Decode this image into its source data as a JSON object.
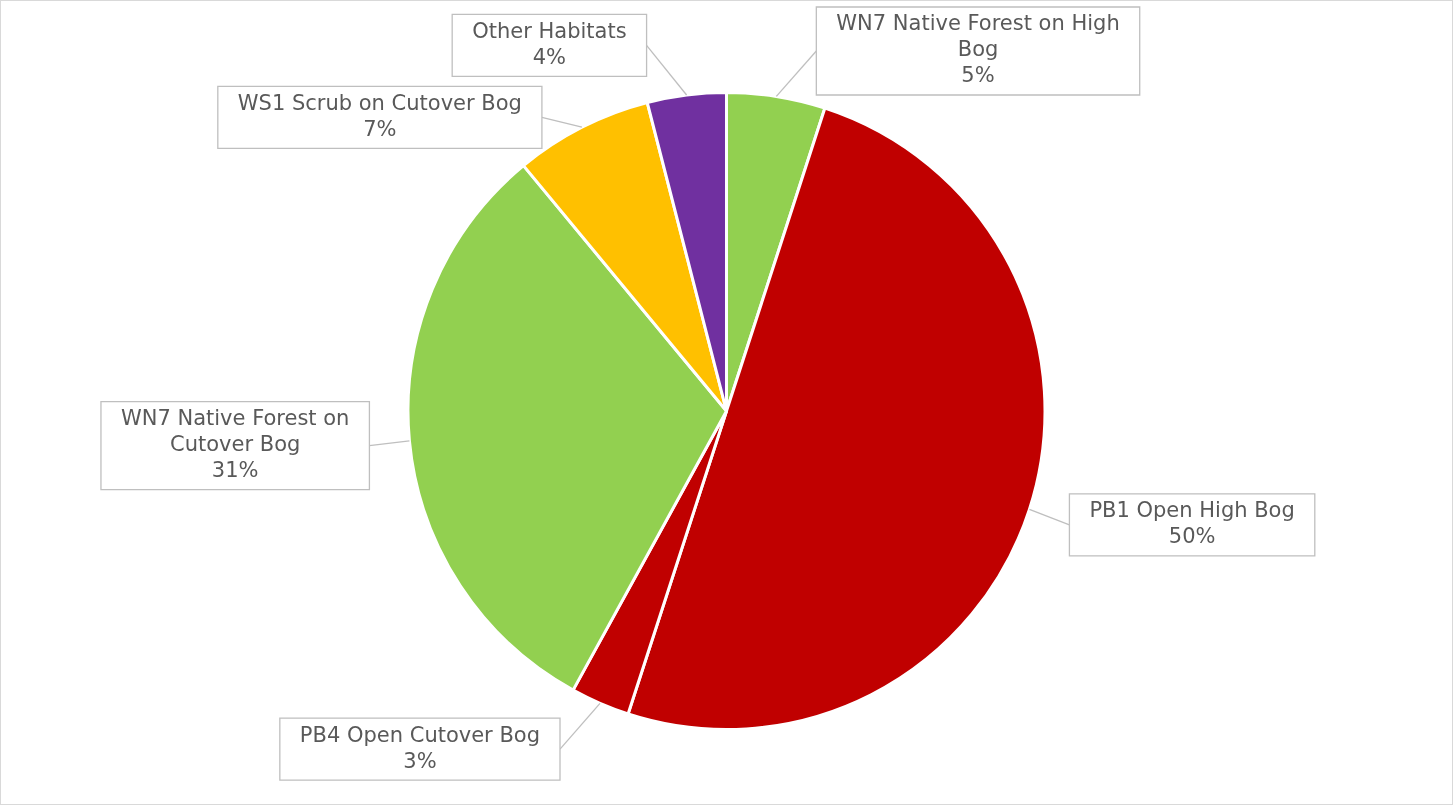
{
  "chart_data": {
    "type": "pie",
    "categories": [
      "WN7 Native Forest on High Bog",
      "PB1 Open High Bog",
      "PB4 Open Cutover Bog",
      "WN7 Native Forest on Cutover Bog",
      "WS1 Scrub on Cutover Bog",
      "Other Habitats"
    ],
    "values": [
      5,
      50,
      3,
      31,
      7,
      4
    ],
    "colors": [
      "#92d050",
      "#c00000",
      "#c00000",
      "#92d050",
      "#ffc000",
      "#7030a0"
    ],
    "value_labels": [
      "5%",
      "50%",
      "3%",
      "31%",
      "7%",
      "4%"
    ]
  }
}
